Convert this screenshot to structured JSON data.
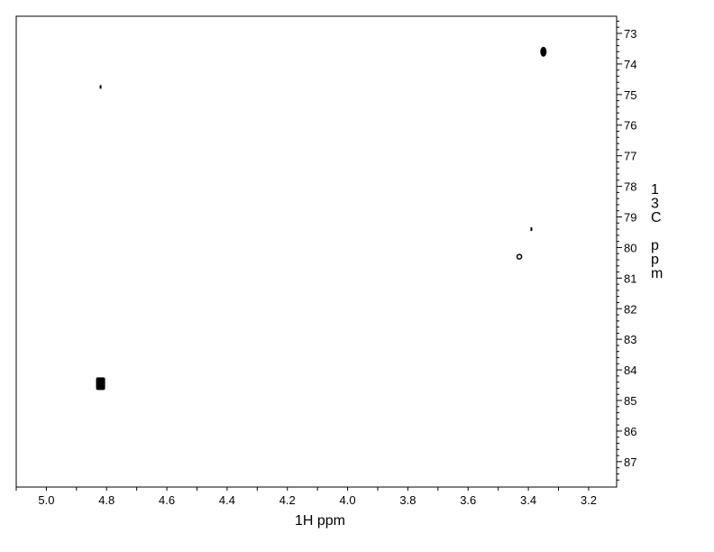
{
  "chart_data": {
    "type": "scatter",
    "subtype": "2D NMR contour",
    "xlabel": "1H ppm",
    "ylabel": "13C ppm",
    "xlim": [
      5.1,
      3.107
    ],
    "ylim": [
      72.44,
      87.83
    ],
    "x_reversed": true,
    "y_axis_side": "right",
    "x_ticks": [
      "5.0",
      "4.8",
      "4.6",
      "4.4",
      "4.2",
      "4.0",
      "3.8",
      "3.6",
      "3.4",
      "3.2"
    ],
    "y_ticks": [
      "73",
      "74",
      "75",
      "76",
      "77",
      "78",
      "79",
      "80",
      "81",
      "82",
      "83",
      "84",
      "85",
      "86",
      "87"
    ],
    "grid": false,
    "color": "#000000",
    "peaks": [
      {
        "x": 4.82,
        "y": 74.75,
        "size": "dot"
      },
      {
        "x": 3.35,
        "y": 73.6,
        "size": "medium"
      },
      {
        "x": 3.39,
        "y": 79.4,
        "size": "dot"
      },
      {
        "x": 3.43,
        "y": 80.3,
        "size": "ring"
      },
      {
        "x": 4.82,
        "y": 84.45,
        "size": "large"
      }
    ]
  }
}
